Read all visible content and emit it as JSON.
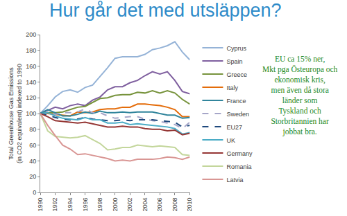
{
  "chart_data": {
    "type": "line",
    "title": "Hur går det med utsläppen?",
    "ylabel": "Total Greenhouse Gas Emissions\n(in CO2 equivalent) indexed to 1990",
    "annotation": "EU ca 15% ner,\nMkt pga Östeuropa och\nekonomisk kris,\nmen även då stora\nländer som\nTyskland och\nStorbritannien har\njobbat bra.",
    "x": [
      1990,
      1991,
      1992,
      1993,
      1994,
      1995,
      1996,
      1997,
      1998,
      1999,
      2000,
      2001,
      2002,
      2003,
      2004,
      2005,
      2006,
      2007,
      2008,
      2009,
      2010
    ],
    "xlim": [
      1990,
      2010
    ],
    "xticks": [
      1990,
      1992,
      1994,
      1996,
      1998,
      2000,
      2002,
      2004,
      2006,
      2008,
      2010
    ],
    "ylim": [
      0,
      200
    ],
    "yticks": [
      0,
      20,
      40,
      60,
      80,
      100,
      120,
      140,
      160,
      180,
      200
    ],
    "grid": false,
    "legend": "right",
    "series": [
      {
        "name": "Cyprus",
        "color": "#95b3d7",
        "line_style": "solid",
        "values": [
          100,
          110,
          121,
          128,
          130,
          127,
          133,
          136,
          147,
          158,
          170,
          172,
          172,
          172,
          175,
          181,
          183,
          186,
          191,
          178,
          168
        ]
      },
      {
        "name": "Spain",
        "color": "#7f5f9f",
        "line_style": "solid",
        "values": [
          100,
          104,
          108,
          106,
          110,
          112,
          110,
          117,
          121,
          130,
          134,
          134,
          139,
          142,
          148,
          153,
          150,
          153,
          142,
          128,
          125
        ]
      },
      {
        "name": "Greece",
        "color": "#77933c",
        "line_style": "solid",
        "values": [
          100,
          101,
          101,
          102,
          105,
          108,
          109,
          114,
          119,
          120,
          123,
          124,
          124,
          127,
          126,
          129,
          126,
          129,
          126,
          118,
          112
        ]
      },
      {
        "name": "Italy",
        "color": "#e46c0a",
        "line_style": "solid",
        "values": [
          100,
          100,
          99,
          98,
          97,
          102,
          101,
          102,
          105,
          106,
          106,
          108,
          108,
          112,
          112,
          111,
          110,
          108,
          105,
          96,
          96
        ]
      },
      {
        "name": "France",
        "color": "#31859c",
        "line_style": "solid",
        "values": [
          100,
          105,
          101,
          97,
          97,
          99,
          102,
          100,
          103,
          101,
          101,
          102,
          101,
          102,
          102,
          102,
          100,
          98,
          98,
          94,
          95
        ]
      },
      {
        "name": "Sweden",
        "color": "#a6a6c8",
        "line_style": "dashed",
        "values": [
          100,
          100,
          99,
          101,
          101,
          102,
          106,
          101,
          101,
          97,
          94,
          95,
          96,
          96,
          93,
          91,
          90,
          88,
          86,
          81,
          89
        ]
      },
      {
        "name": "EU27",
        "color": "#1f497d",
        "line_style": "dashed",
        "values": [
          100,
          98,
          95,
          93,
          92,
          93,
          95,
          93,
          92,
          91,
          91,
          92,
          91,
          92,
          92,
          92,
          91,
          90,
          89,
          83,
          85
        ]
      },
      {
        "name": "UK",
        "color": "#4bacc6",
        "line_style": "solid",
        "values": [
          100,
          101,
          97,
          94,
          93,
          92,
          95,
          92,
          92,
          88,
          88,
          89,
          86,
          87,
          86,
          85,
          84,
          83,
          81,
          74,
          76
        ]
      },
      {
        "name": "Germany",
        "color": "#953735",
        "line_style": "solid",
        "values": [
          100,
          96,
          91,
          90,
          89,
          88,
          89,
          87,
          85,
          83,
          83,
          84,
          83,
          83,
          81,
          80,
          80,
          78,
          79,
          73,
          75
        ]
      },
      {
        "name": "Romania",
        "color": "#c3d69b",
        "line_style": "solid",
        "values": [
          100,
          78,
          71,
          70,
          69,
          70,
          72,
          67,
          62,
          54,
          55,
          57,
          57,
          60,
          59,
          58,
          59,
          58,
          57,
          48,
          47
        ]
      },
      {
        "name": "Latvia",
        "color": "#d99694",
        "line_style": "solid",
        "values": [
          100,
          85,
          72,
          60,
          55,
          48,
          49,
          47,
          45,
          43,
          40,
          41,
          40,
          42,
          42,
          42,
          43,
          45,
          44,
          42,
          45
        ]
      }
    ]
  }
}
